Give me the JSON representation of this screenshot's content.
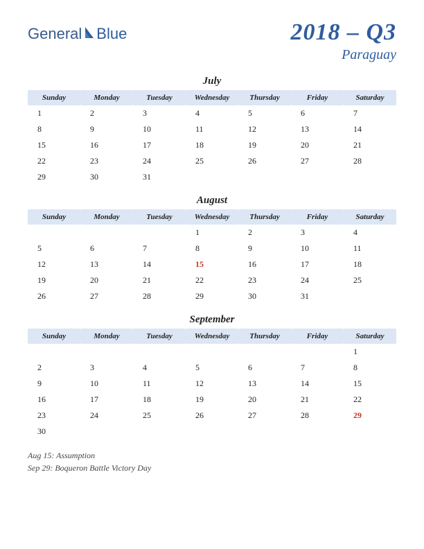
{
  "logo": {
    "text1": "General",
    "text2": "Blue"
  },
  "header": {
    "quarter": "2018 – Q3",
    "country": "Paraguay"
  },
  "day_headers": [
    "Sunday",
    "Monday",
    "Tuesday",
    "Wednesday",
    "Thursday",
    "Friday",
    "Saturday"
  ],
  "colors": {
    "header_bg": "#dce6f4",
    "brand": "#2e5c9e",
    "holiday": "#c0392b",
    "text": "#222222"
  },
  "months": [
    {
      "name": "July",
      "weeks": [
        [
          {
            "d": "1"
          },
          {
            "d": "2"
          },
          {
            "d": "3"
          },
          {
            "d": "4"
          },
          {
            "d": "5"
          },
          {
            "d": "6"
          },
          {
            "d": "7"
          }
        ],
        [
          {
            "d": "8"
          },
          {
            "d": "9"
          },
          {
            "d": "10"
          },
          {
            "d": "11"
          },
          {
            "d": "12"
          },
          {
            "d": "13"
          },
          {
            "d": "14"
          }
        ],
        [
          {
            "d": "15"
          },
          {
            "d": "16"
          },
          {
            "d": "17"
          },
          {
            "d": "18"
          },
          {
            "d": "19"
          },
          {
            "d": "20"
          },
          {
            "d": "21"
          }
        ],
        [
          {
            "d": "22"
          },
          {
            "d": "23"
          },
          {
            "d": "24"
          },
          {
            "d": "25"
          },
          {
            "d": "26"
          },
          {
            "d": "27"
          },
          {
            "d": "28"
          }
        ],
        [
          {
            "d": "29"
          },
          {
            "d": "30"
          },
          {
            "d": "31"
          },
          {
            "d": ""
          },
          {
            "d": ""
          },
          {
            "d": ""
          },
          {
            "d": ""
          }
        ]
      ]
    },
    {
      "name": "August",
      "weeks": [
        [
          {
            "d": ""
          },
          {
            "d": ""
          },
          {
            "d": ""
          },
          {
            "d": "1"
          },
          {
            "d": "2"
          },
          {
            "d": "3"
          },
          {
            "d": "4"
          }
        ],
        [
          {
            "d": "5"
          },
          {
            "d": "6"
          },
          {
            "d": "7"
          },
          {
            "d": "8"
          },
          {
            "d": "9"
          },
          {
            "d": "10"
          },
          {
            "d": "11"
          }
        ],
        [
          {
            "d": "12"
          },
          {
            "d": "13"
          },
          {
            "d": "14"
          },
          {
            "d": "15",
            "h": true
          },
          {
            "d": "16"
          },
          {
            "d": "17"
          },
          {
            "d": "18"
          }
        ],
        [
          {
            "d": "19"
          },
          {
            "d": "20"
          },
          {
            "d": "21"
          },
          {
            "d": "22"
          },
          {
            "d": "23"
          },
          {
            "d": "24"
          },
          {
            "d": "25"
          }
        ],
        [
          {
            "d": "26"
          },
          {
            "d": "27"
          },
          {
            "d": "28"
          },
          {
            "d": "29"
          },
          {
            "d": "30"
          },
          {
            "d": "31"
          },
          {
            "d": ""
          }
        ]
      ]
    },
    {
      "name": "September",
      "weeks": [
        [
          {
            "d": ""
          },
          {
            "d": ""
          },
          {
            "d": ""
          },
          {
            "d": ""
          },
          {
            "d": ""
          },
          {
            "d": ""
          },
          {
            "d": "1"
          }
        ],
        [
          {
            "d": "2"
          },
          {
            "d": "3"
          },
          {
            "d": "4"
          },
          {
            "d": "5"
          },
          {
            "d": "6"
          },
          {
            "d": "7"
          },
          {
            "d": "8"
          }
        ],
        [
          {
            "d": "9"
          },
          {
            "d": "10"
          },
          {
            "d": "11"
          },
          {
            "d": "12"
          },
          {
            "d": "13"
          },
          {
            "d": "14"
          },
          {
            "d": "15"
          }
        ],
        [
          {
            "d": "16"
          },
          {
            "d": "17"
          },
          {
            "d": "18"
          },
          {
            "d": "19"
          },
          {
            "d": "20"
          },
          {
            "d": "21"
          },
          {
            "d": "22"
          }
        ],
        [
          {
            "d": "23"
          },
          {
            "d": "24"
          },
          {
            "d": "25"
          },
          {
            "d": "26"
          },
          {
            "d": "27"
          },
          {
            "d": "28"
          },
          {
            "d": "29",
            "h": true
          }
        ],
        [
          {
            "d": "30"
          },
          {
            "d": ""
          },
          {
            "d": ""
          },
          {
            "d": ""
          },
          {
            "d": ""
          },
          {
            "d": ""
          },
          {
            "d": ""
          }
        ]
      ]
    }
  ],
  "holidays": [
    "Aug 15: Assumption",
    "Sep 29: Boqueron Battle Victory Day"
  ]
}
